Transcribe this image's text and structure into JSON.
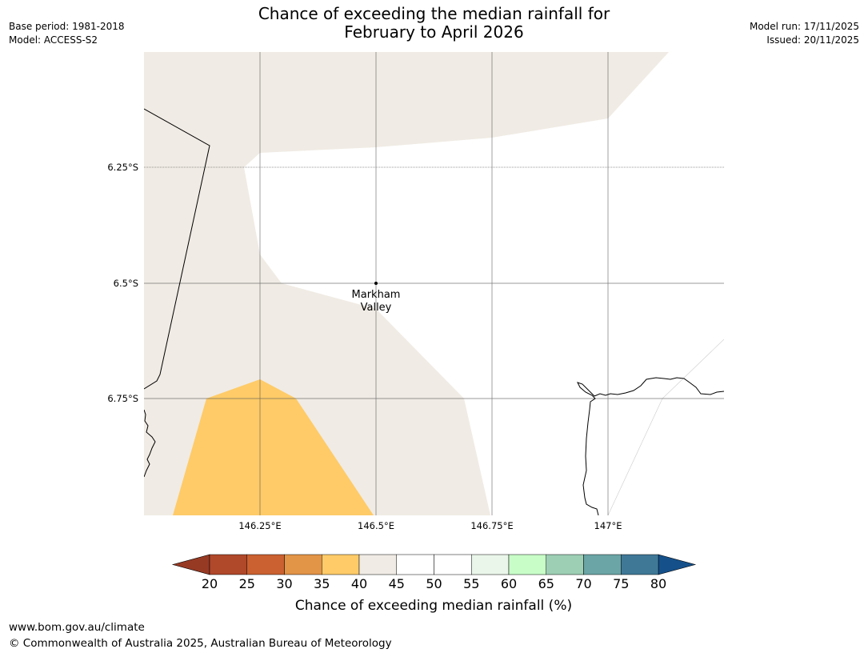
{
  "meta": {
    "base_period": "Base period: 1981-2018",
    "model": "Model: ACCESS-S2",
    "model_run": "Model run: 17/11/2025",
    "issued": "Issued: 20/11/2025"
  },
  "title": {
    "line1": "Chance of exceeding the median rainfall for",
    "line2": "February to April 2026"
  },
  "map": {
    "lat_labels": [
      "6.25°S",
      "6.5°S",
      "6.75°S"
    ],
    "lon_labels": [
      "146.25°E",
      "146.5°E",
      "146.75°E",
      "147°E"
    ],
    "place": {
      "name_line1": "Markham",
      "name_line2": "Valley"
    },
    "category_colors": {
      "35-40": "#fecb68",
      "40-45": "#f0ebe4",
      "45-55": "#ffffff"
    }
  },
  "colorbar": {
    "title": "Chance of exceeding median rainfall (%)",
    "ticks": [
      "20",
      "25",
      "30",
      "35",
      "40",
      "45",
      "50",
      "55",
      "60",
      "65",
      "70",
      "75",
      "80"
    ],
    "colors": [
      "#b0482a",
      "#cb6130",
      "#e29447",
      "#fecb68",
      "#f0ebe4",
      "#ffffff",
      "#ffffff",
      "#ebf6eb",
      "#c8fdc8",
      "#9dcfb5",
      "#6ba5a6",
      "#3f7897"
    ],
    "low_extend_color": "#973a24",
    "high_extend_color": "#15508a"
  },
  "footer": {
    "url": "www.bom.gov.au/climate",
    "copyright": "© Commonwealth of Australia 2025, Australian Bureau of Meteorology"
  }
}
